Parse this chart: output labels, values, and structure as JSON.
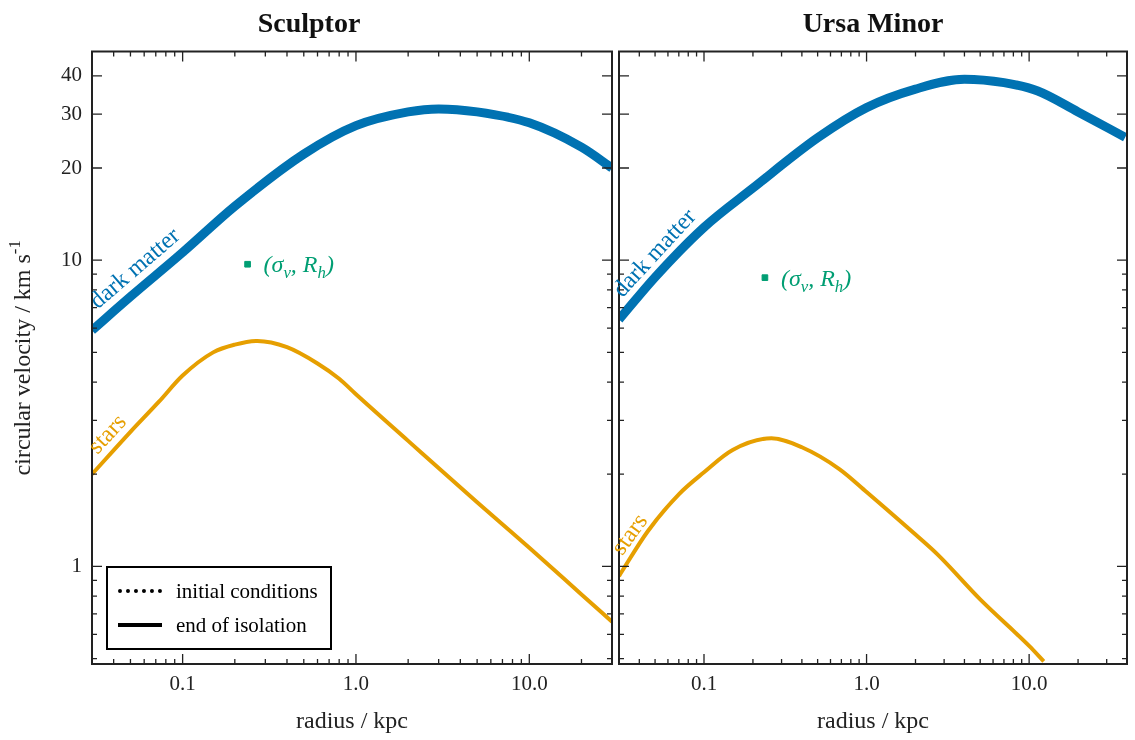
{
  "chart_data": [
    {
      "type": "line",
      "title": "Sculptor",
      "xlabel": "radius / kpc",
      "ylabel": "circular velocity / km s$^{-1}$",
      "log": "xy",
      "grid": false,
      "annotations": [
        "initial conditions",
        "end of isolation"
      ],
      "xlim": [
        0.03,
        30
      ],
      "ylim": [
        0.48,
        48
      ],
      "xticks": [
        {
          "value": 0.03,
          "label": null
        },
        {
          "value": 0.04,
          "label": null
        },
        {
          "value": 0.05,
          "label": null
        },
        {
          "value": 0.06,
          "label": null
        },
        {
          "value": 0.07,
          "label": null
        },
        {
          "value": 0.08,
          "label": null
        },
        {
          "value": 0.09,
          "label": null
        },
        0.1,
        {
          "value": 0.2,
          "label": null
        },
        {
          "value": 0.3,
          "label": null
        },
        {
          "value": 0.4,
          "label": null
        },
        {
          "value": 0.5,
          "label": null
        },
        {
          "value": 0.6,
          "label": null
        },
        {
          "value": 0.7,
          "label": null
        },
        {
          "value": 0.8,
          "label": null
        },
        {
          "value": 0.9,
          "label": null
        },
        {
          "value": 1,
          "label": "1.0"
        },
        {
          "value": 2,
          "label": null
        },
        {
          "value": 3,
          "label": null
        },
        {
          "value": 4,
          "label": null
        },
        {
          "value": 5,
          "label": null
        },
        {
          "value": 6,
          "label": null
        },
        {
          "value": 7,
          "label": null
        },
        {
          "value": 8,
          "label": null
        },
        {
          "value": 9,
          "label": null
        },
        {
          "value": 10,
          "label": "10.0"
        },
        {
          "value": 20,
          "label": null
        },
        {
          "value": 30,
          "label": null
        }
      ],
      "yticks": [
        {
          "value": 0.5,
          "label": null
        },
        {
          "value": 0.6,
          "label": null
        },
        {
          "value": 0.7,
          "label": null
        },
        {
          "value": 0.8,
          "label": null
        },
        {
          "value": 0.9,
          "label": null
        },
        1,
        {
          "value": 2,
          "label": null
        },
        {
          "value": 3,
          "label": null
        },
        {
          "value": 4,
          "label": null
        },
        {
          "value": 5,
          "label": null
        },
        {
          "value": 6,
          "label": null
        },
        {
          "value": 7,
          "label": null
        },
        {
          "value": 8,
          "label": null
        },
        {
          "value": 9,
          "label": null
        },
        10,
        20,
        30,
        40
      ],
      "series": [
        {
          "name": "dark matter",
          "type": "line",
          "color": "#0072b2",
          "line_style": "solid",
          "x": [
            0.03,
            0.05,
            0.1,
            0.2,
            0.5,
            1,
            2,
            3,
            5,
            10,
            20,
            30
          ],
          "values": [
            5.9,
            7.6,
            10.6,
            15,
            22.2,
            27.5,
            30.5,
            31.2,
            30.5,
            28.1,
            23.4,
            20
          ]
        },
        {
          "name": "stars",
          "type": "line",
          "color": "#e69f00",
          "line_style": "solid",
          "x": [
            0.03,
            0.05,
            0.073,
            0.1,
            0.15,
            0.2,
            0.27,
            0.4,
            0.6,
            0.8,
            1,
            2,
            5,
            10,
            20,
            30
          ],
          "values": [
            2,
            2.75,
            3.45,
            4.2,
            5,
            5.3,
            5.45,
            5.2,
            4.6,
            4.1,
            3.65,
            2.57,
            1.62,
            1.15,
            0.81,
            0.66
          ]
        },
        {
          "name": "(σ$_{v}$, R$_{h}$)",
          "type": "scatter",
          "color": "#009e73",
          "marker": "square",
          "x": [
            0.237
          ],
          "values": [
            9.7
          ]
        }
      ]
    },
    {
      "type": "line",
      "title": "Ursa Minor",
      "xlabel": "radius / kpc",
      "log": "xy",
      "grid": false,
      "tick_labels": "x",
      "xlim": [
        0.03,
        40
      ],
      "ylim": [
        0.48,
        48
      ],
      "xticks": [
        {
          "value": 0.03,
          "label": null
        },
        {
          "value": 0.04,
          "label": null
        },
        {
          "value": 0.05,
          "label": null
        },
        {
          "value": 0.06,
          "label": null
        },
        {
          "value": 0.07,
          "label": null
        },
        {
          "value": 0.08,
          "label": null
        },
        {
          "value": 0.09,
          "label": null
        },
        0.1,
        {
          "value": 0.2,
          "label": null
        },
        {
          "value": 0.3,
          "label": null
        },
        {
          "value": 0.4,
          "label": null
        },
        {
          "value": 0.5,
          "label": null
        },
        {
          "value": 0.6,
          "label": null
        },
        {
          "value": 0.7,
          "label": null
        },
        {
          "value": 0.8,
          "label": null
        },
        {
          "value": 0.9,
          "label": null
        },
        {
          "value": 1,
          "label": "1.0"
        },
        {
          "value": 2,
          "label": null
        },
        {
          "value": 3,
          "label": null
        },
        {
          "value": 4,
          "label": null
        },
        {
          "value": 5,
          "label": null
        },
        {
          "value": 6,
          "label": null
        },
        {
          "value": 7,
          "label": null
        },
        {
          "value": 8,
          "label": null
        },
        {
          "value": 9,
          "label": null
        },
        {
          "value": 10,
          "label": "10.0"
        },
        {
          "value": 20,
          "label": null
        },
        {
          "value": 30,
          "label": null
        },
        {
          "value": 40,
          "label": null
        }
      ],
      "yticks": [
        {
          "value": 0.5,
          "label": null
        },
        {
          "value": 0.6,
          "label": null
        },
        {
          "value": 0.7,
          "label": null
        },
        {
          "value": 0.8,
          "label": null
        },
        {
          "value": 0.9,
          "label": null
        },
        1,
        {
          "value": 2,
          "label": null
        },
        {
          "value": 3,
          "label": null
        },
        {
          "value": 4,
          "label": null
        },
        {
          "value": 5,
          "label": null
        },
        {
          "value": 6,
          "label": null
        },
        {
          "value": 7,
          "label": null
        },
        {
          "value": 8,
          "label": null
        },
        {
          "value": 9,
          "label": null
        },
        10,
        20,
        30,
        40
      ],
      "series": [
        {
          "name": "dark matter",
          "type": "line",
          "color": "#0072b2",
          "line_style": "solid",
          "x": [
            0.03,
            0.05,
            0.1,
            0.2,
            0.5,
            1,
            2,
            4,
            7,
            11.3,
            20,
            39
          ],
          "values": [
            6.4,
            8.8,
            12.8,
            17.2,
            25.1,
            31.5,
            36.2,
            39,
            38,
            35.7,
            30.5,
            25.2
          ]
        },
        {
          "name": "stars",
          "type": "line",
          "color": "#e69f00",
          "line_style": "solid",
          "x": [
            0.03,
            0.045,
            0.07,
            0.1,
            0.15,
            0.26,
            0.4,
            0.68,
            1,
            2,
            2.75,
            5,
            10,
            12.3
          ],
          "values": [
            0.93,
            1.3,
            1.72,
            2.03,
            2.4,
            2.62,
            2.45,
            2.08,
            1.75,
            1.27,
            1.09,
            0.78,
            0.55,
            0.49
          ]
        },
        {
          "name": "(σ$_{v}$, R$_{h}$)",
          "type": "scatter",
          "color": "#009e73",
          "marker": "square",
          "x": [
            0.237
          ],
          "values": [
            8.77
          ]
        }
      ]
    }
  ]
}
